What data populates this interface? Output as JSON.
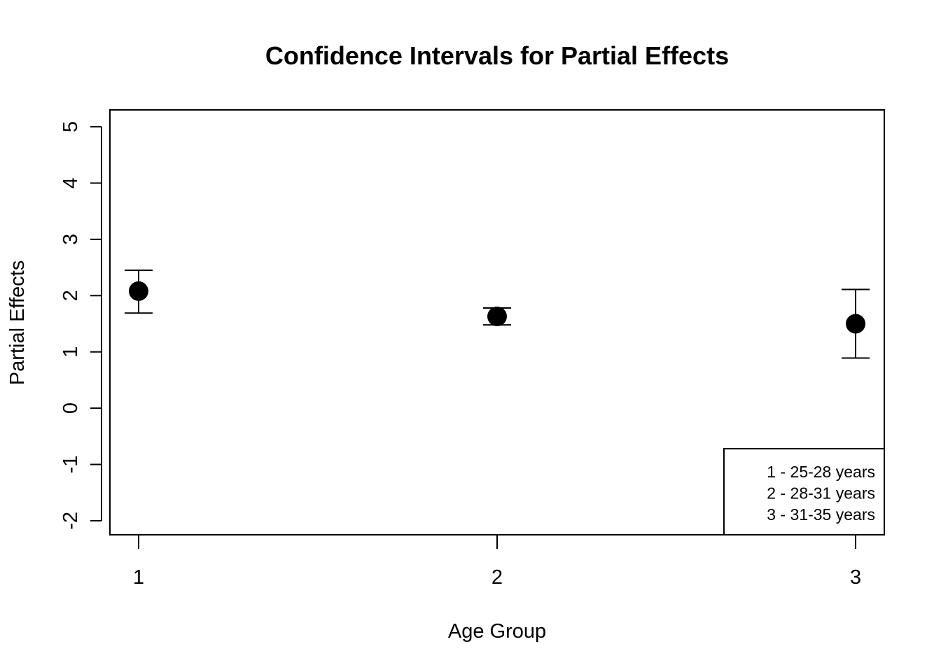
{
  "chart_data": {
    "type": "scatter",
    "title": "Confidence Intervals for Partial Effects",
    "xlabel": "Age Group",
    "ylabel": "Partial Effects",
    "xlim": [
      0.92,
      3.08
    ],
    "ylim": [
      -2.25,
      5.3
    ],
    "x_ticks": [
      "1",
      "2",
      "3"
    ],
    "y_ticks": [
      "-2",
      "-1",
      "0",
      "1",
      "2",
      "3",
      "4",
      "5"
    ],
    "grid": false,
    "error_bars": true,
    "series": [
      {
        "points": [
          {
            "x": 1,
            "y": 2.08,
            "lower": 1.69,
            "upper": 2.45
          },
          {
            "x": 2,
            "y": 1.63,
            "lower": 1.48,
            "upper": 1.78
          },
          {
            "x": 3,
            "y": 1.5,
            "lower": 0.89,
            "upper": 2.11
          }
        ]
      }
    ],
    "legend": {
      "placement": "bottom-right",
      "entries": [
        "1 - 25-28 years",
        "2 - 28-31 years",
        "3 - 31-35 years"
      ]
    }
  }
}
